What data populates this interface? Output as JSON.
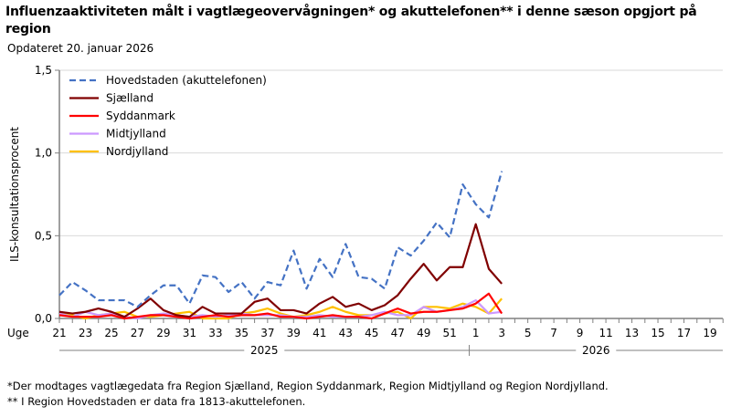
{
  "title": "Influenzaaktiviteten målt i vagtlægeovervågningen* og akuttelefonen** i denne sæson opgjort på region",
  "subtitle": "Opdateret 20. januar 2026",
  "footnotes": [
    "*Der modtages vagtlægedata fra Region Sjælland, Region Syddanmark, Region Midtjylland og Region Nordjylland.",
    "** I Region Hovedstaden er data fra 1813-akuttelefonen."
  ],
  "chart_data": {
    "type": "line",
    "ylabel": "ILS-konsultationsprocent",
    "xlabel_prefix": "Uge",
    "ylim": [
      0,
      1.5
    ],
    "yticks": [
      "0,0",
      "0,5",
      "1,0",
      "1,5"
    ],
    "grid": true,
    "legend_position": "top-left",
    "x_axis_weeks": [
      21,
      22,
      23,
      24,
      25,
      26,
      27,
      28,
      29,
      30,
      31,
      32,
      33,
      34,
      35,
      36,
      37,
      38,
      39,
      40,
      41,
      42,
      43,
      44,
      45,
      46,
      47,
      48,
      49,
      50,
      51,
      52,
      1,
      2,
      3,
      4,
      5,
      6,
      7,
      8,
      9,
      10,
      11,
      12,
      13,
      14,
      15,
      16,
      17,
      18,
      19,
      20
    ],
    "xtick_labels": [
      "21",
      "23",
      "25",
      "27",
      "29",
      "31",
      "33",
      "35",
      "37",
      "39",
      "41",
      "43",
      "45",
      "47",
      "49",
      "51",
      "1",
      "3",
      "5",
      "7",
      "9",
      "11",
      "13",
      "15",
      "17",
      "19"
    ],
    "year_labels": [
      "2025",
      "2026"
    ],
    "x": [
      21,
      22,
      23,
      24,
      25,
      26,
      27,
      28,
      29,
      30,
      31,
      32,
      33,
      34,
      35,
      36,
      37,
      38,
      39,
      40,
      41,
      42,
      43,
      44,
      45,
      46,
      47,
      48,
      49,
      50,
      51,
      52,
      1,
      2,
      3
    ],
    "series": [
      {
        "name": "Hovedstaden (akuttelefonen)",
        "color": "#4472C4",
        "dashed": true,
        "values": [
          0.14,
          0.22,
          0.17,
          0.11,
          0.11,
          0.11,
          0.07,
          0.14,
          0.2,
          0.2,
          0.09,
          0.26,
          0.25,
          0.16,
          0.22,
          0.12,
          0.22,
          0.2,
          0.41,
          0.18,
          0.36,
          0.25,
          0.45,
          0.25,
          0.24,
          0.18,
          0.43,
          0.38,
          0.47,
          0.58,
          0.49,
          0.81,
          0.69,
          0.61,
          0.89
        ]
      },
      {
        "name": "Sjælland",
        "color": "#800000",
        "dashed": false,
        "values": [
          0.04,
          0.03,
          0.04,
          0.06,
          0.04,
          0.01,
          0.06,
          0.12,
          0.05,
          0.02,
          0.01,
          0.07,
          0.03,
          0.03,
          0.03,
          0.1,
          0.12,
          0.05,
          0.05,
          0.03,
          0.09,
          0.13,
          0.07,
          0.09,
          0.05,
          0.08,
          0.14,
          0.24,
          0.33,
          0.23,
          0.31,
          0.31,
          0.57,
          0.3,
          0.21
        ]
      },
      {
        "name": "Syddanmark",
        "color": "#FF0000",
        "dashed": false,
        "values": [
          0.02,
          0.01,
          0.01,
          0.01,
          0.02,
          0.0,
          0.01,
          0.02,
          0.02,
          0.01,
          0.0,
          0.01,
          0.02,
          0.01,
          0.02,
          0.02,
          0.03,
          0.01,
          0.01,
          0.0,
          0.01,
          0.02,
          0.01,
          0.01,
          0.0,
          0.03,
          0.06,
          0.03,
          0.04,
          0.04,
          0.05,
          0.06,
          0.09,
          0.15,
          0.03
        ]
      },
      {
        "name": "Midtjylland",
        "color": "#CC99FF",
        "dashed": false,
        "values": [
          0.03,
          0.01,
          0.04,
          0.02,
          0.03,
          0.01,
          0.0,
          0.02,
          0.03,
          0.02,
          0.01,
          0.02,
          0.01,
          0.02,
          0.03,
          0.02,
          0.02,
          0.02,
          0.01,
          0.01,
          0.02,
          0.01,
          0.01,
          0.01,
          0.02,
          0.04,
          0.02,
          0.02,
          0.07,
          0.04,
          0.05,
          0.07,
          0.11,
          0.03,
          0.04
        ]
      },
      {
        "name": "Nordjylland",
        "color": "#FFC000",
        "dashed": false,
        "values": [
          0.03,
          0.02,
          0.0,
          0.02,
          0.03,
          0.04,
          0.01,
          0.01,
          0.02,
          0.03,
          0.04,
          0.0,
          0.0,
          0.0,
          0.03,
          0.04,
          0.06,
          0.03,
          0.01,
          0.02,
          0.04,
          0.07,
          0.04,
          0.02,
          0.02,
          0.03,
          0.04,
          0.0,
          0.07,
          0.07,
          0.06,
          0.09,
          0.07,
          0.03,
          0.12
        ]
      }
    ]
  }
}
